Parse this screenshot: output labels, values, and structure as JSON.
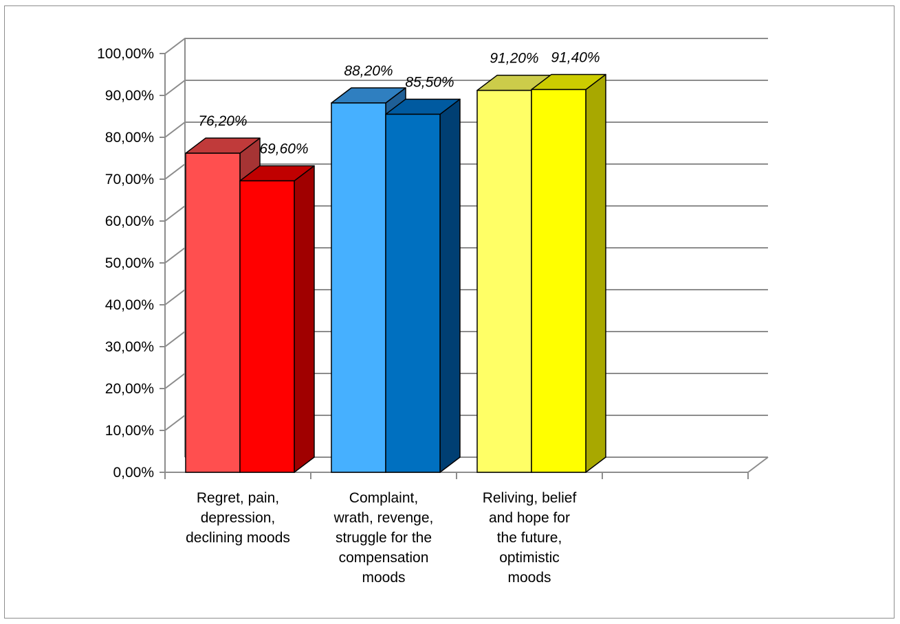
{
  "chart_data": {
    "type": "bar",
    "categories": [
      [
        "Regret, pain,",
        "depression,",
        "declining moods"
      ],
      [
        "Complaint,",
        "wrath, revenge,",
        "struggle for the",
        "compensation",
        "moods"
      ],
      [
        "Reliving, belief",
        "and hope for",
        "the future,",
        "optimistic",
        "moods"
      ]
    ],
    "series": [
      {
        "values": [
          76.2,
          88.2,
          91.2
        ]
      },
      {
        "values": [
          69.6,
          85.5,
          91.4
        ]
      }
    ],
    "data_labels": [
      [
        "76,20%",
        "69,60%"
      ],
      [
        "88,20%",
        "85,50%"
      ],
      [
        "91,20%",
        "91,40%"
      ]
    ],
    "y_ticks": [
      "0,00%",
      "10,00%",
      "20,00%",
      "30,00%",
      "40,00%",
      "50,00%",
      "60,00%",
      "70,00%",
      "80,00%",
      "90,00%",
      "100,00%"
    ],
    "ylim": [
      0,
      100
    ],
    "grid": true,
    "style": "3d-clustered-column",
    "colors": [
      [
        {
          "front": "#FF4F4F",
          "top": "#C03A3A",
          "side": "#A63434"
        },
        {
          "front": "#FF0000",
          "top": "#C00000",
          "side": "#A00000"
        }
      ],
      [
        {
          "front": "#46B0FF",
          "top": "#2F7FC0",
          "side": "#1F5F96"
        },
        {
          "front": "#0070C0",
          "top": "#005AA0",
          "side": "#003F73"
        }
      ],
      [
        {
          "front": "#FFFF66",
          "top": "#CCCC4A",
          "side": "#B3B340"
        },
        {
          "front": "#FFFF00",
          "top": "#CCCC00",
          "side": "#A8A800"
        }
      ]
    ],
    "grid_color": "#8c8c8c"
  }
}
